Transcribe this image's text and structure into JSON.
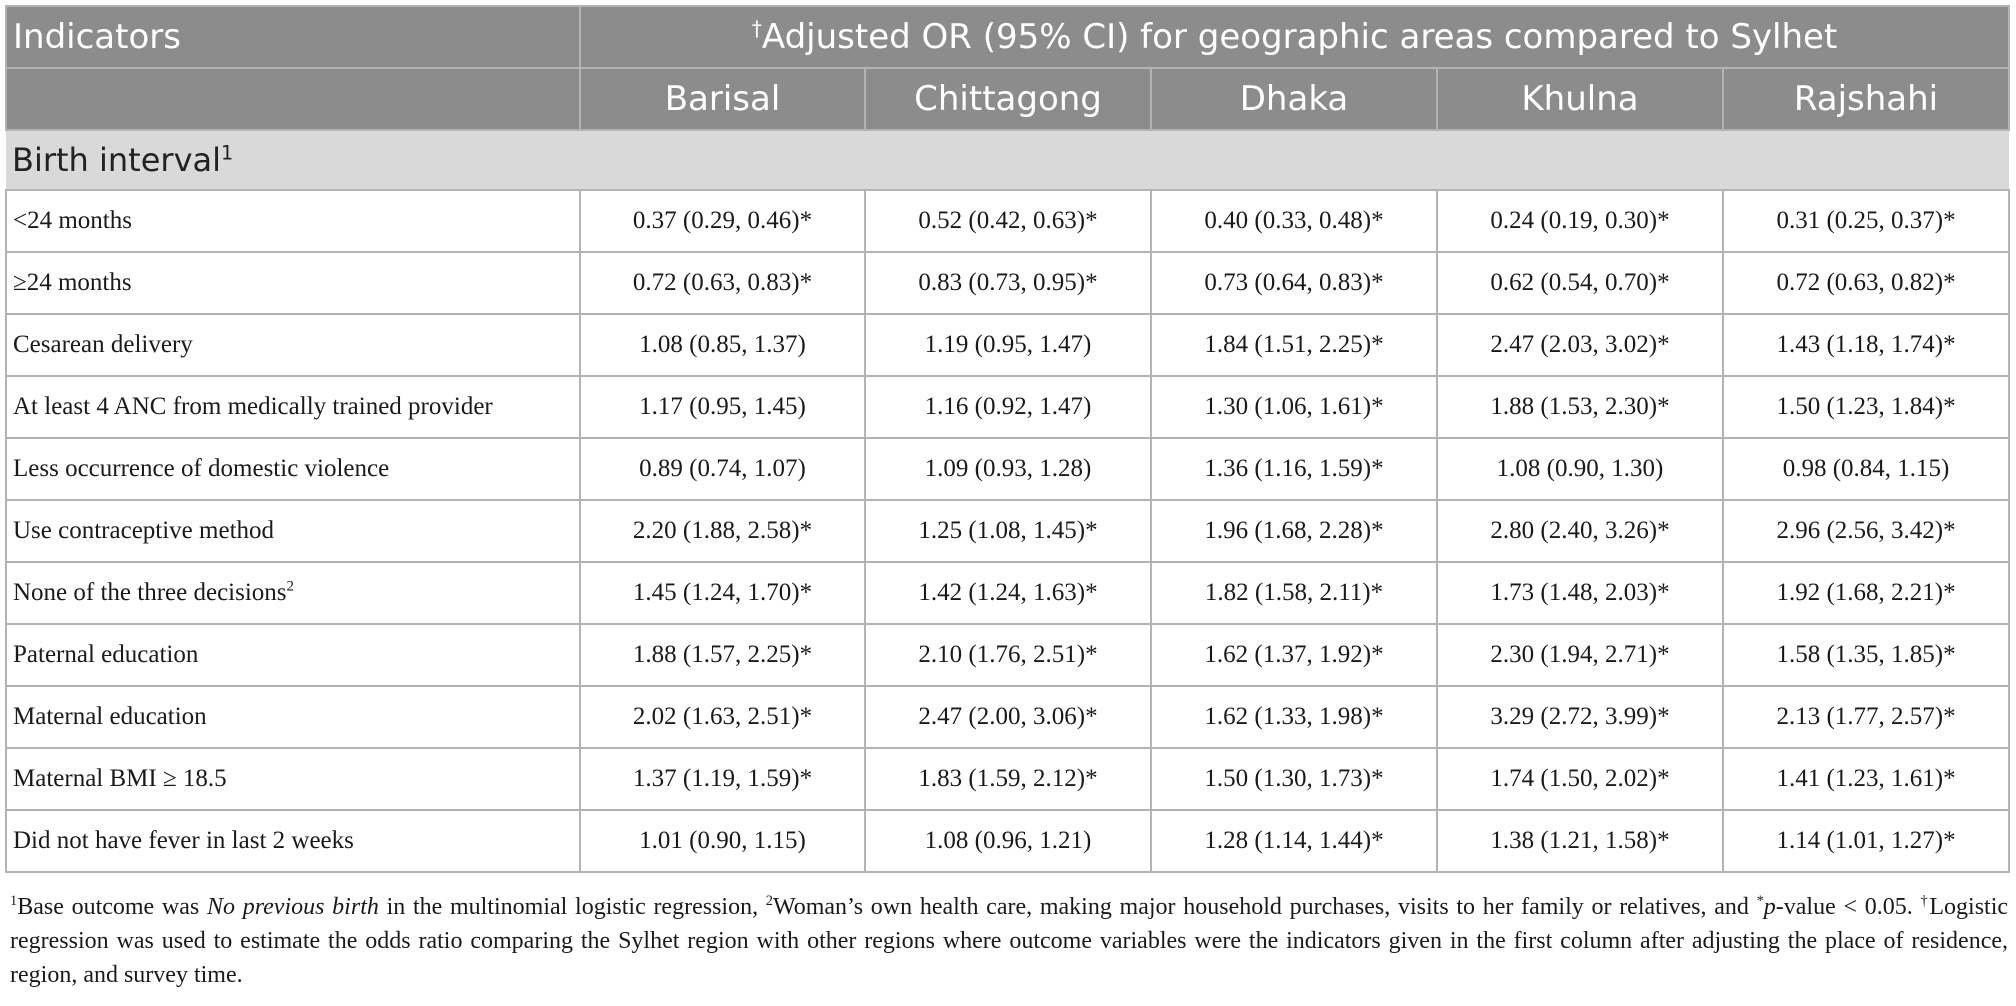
{
  "header": {
    "indicators_label": "Indicators",
    "span_dagger": "†",
    "span_label": "Adjusted OR (95% CI) for geographic areas compared to Sylhet",
    "regions": [
      "Barisal",
      "Chittagong",
      "Dhaka",
      "Khulna",
      "Rajshahi"
    ]
  },
  "section": {
    "label": "Birth interval",
    "sup": "1"
  },
  "rows": [
    {
      "indicator": "<24 months",
      "sup": "",
      "values": [
        "0.37 (0.29, 0.46)*",
        "0.52 (0.42, 0.63)*",
        "0.40 (0.33, 0.48)*",
        "0.24 (0.19, 0.30)*",
        "0.31 (0.25, 0.37)*"
      ]
    },
    {
      "indicator": "≥24 months",
      "sup": "",
      "values": [
        "0.72 (0.63, 0.83)*",
        "0.83 (0.73, 0.95)*",
        "0.73 (0.64, 0.83)*",
        "0.62 (0.54, 0.70)*",
        "0.72 (0.63, 0.82)*"
      ]
    },
    {
      "indicator": "Cesarean delivery",
      "sup": "",
      "values": [
        "1.08 (0.85, 1.37)",
        "1.19 (0.95, 1.47)",
        "1.84 (1.51, 2.25)*",
        "2.47 (2.03, 3.02)*",
        "1.43 (1.18, 1.74)*"
      ]
    },
    {
      "indicator": "At least 4 ANC from medically trained provider",
      "sup": "",
      "values": [
        "1.17 (0.95, 1.45)",
        "1.16 (0.92, 1.47)",
        "1.30 (1.06, 1.61)*",
        "1.88 (1.53, 2.30)*",
        "1.50 (1.23, 1.84)*"
      ]
    },
    {
      "indicator": "Less occurrence of domestic violence",
      "sup": "",
      "values": [
        "0.89 (0.74, 1.07)",
        "1.09 (0.93, 1.28)",
        "1.36 (1.16, 1.59)*",
        "1.08 (0.90, 1.30)",
        "0.98 (0.84, 1.15)"
      ]
    },
    {
      "indicator": "Use contraceptive method",
      "sup": "",
      "values": [
        "2.20 (1.88, 2.58)*",
        "1.25 (1.08, 1.45)*",
        "1.96 (1.68, 2.28)*",
        "2.80 (2.40, 3.26)*",
        "2.96 (2.56, 3.42)*"
      ]
    },
    {
      "indicator": "None of the three decisions",
      "sup": "2",
      "values": [
        "1.45 (1.24, 1.70)*",
        "1.42 (1.24, 1.63)*",
        "1.82 (1.58, 2.11)*",
        "1.73 (1.48, 2.03)*",
        "1.92 (1.68, 2.21)*"
      ]
    },
    {
      "indicator": "Paternal education",
      "sup": "",
      "values": [
        "1.88 (1.57, 2.25)*",
        "2.10 (1.76, 2.51)*",
        "1.62 (1.37, 1.92)*",
        "2.30 (1.94, 2.71)*",
        "1.58 (1.35, 1.85)*"
      ]
    },
    {
      "indicator": "Maternal education",
      "sup": "",
      "values": [
        "2.02 (1.63, 2.51)*",
        "2.47 (2.00, 3.06)*",
        "1.62 (1.33, 1.98)*",
        "3.29 (2.72, 3.99)*",
        "2.13 (1.77, 2.57)*"
      ]
    },
    {
      "indicator": "Maternal BMI ≥ 18.5",
      "sup": "",
      "values": [
        "1.37 (1.19, 1.59)*",
        "1.83 (1.59, 2.12)*",
        "1.50 (1.30, 1.73)*",
        "1.74 (1.50, 2.02)*",
        "1.41 (1.23, 1.61)*"
      ]
    },
    {
      "indicator": "Did not have fever in last 2 weeks",
      "sup": "",
      "values": [
        "1.01 (0.90, 1.15)",
        "1.08 (0.96, 1.21)",
        "1.28 (1.14, 1.44)*",
        "1.38 (1.21, 1.58)*",
        "1.14 (1.01, 1.27)*"
      ]
    }
  ],
  "footnote": {
    "sup1": "1",
    "text1a": "Base outcome was ",
    "italic1": "No previous birth",
    "text1b": " in the multinomial logistic regression, ",
    "sup2": "2",
    "text2": "Woman’s own health care, making major household purchases, visits to her family or relatives, and ",
    "star": "*",
    "italic_p": "p",
    "text3": "-value < 0.05. ",
    "dagger": "†",
    "text4": "Logistic regression was used to estimate the odds ratio comparing the Sylhet region with other regions where outcome variables were the indicators given in the first column after adjusting the place of residence, region, and survey time."
  }
}
